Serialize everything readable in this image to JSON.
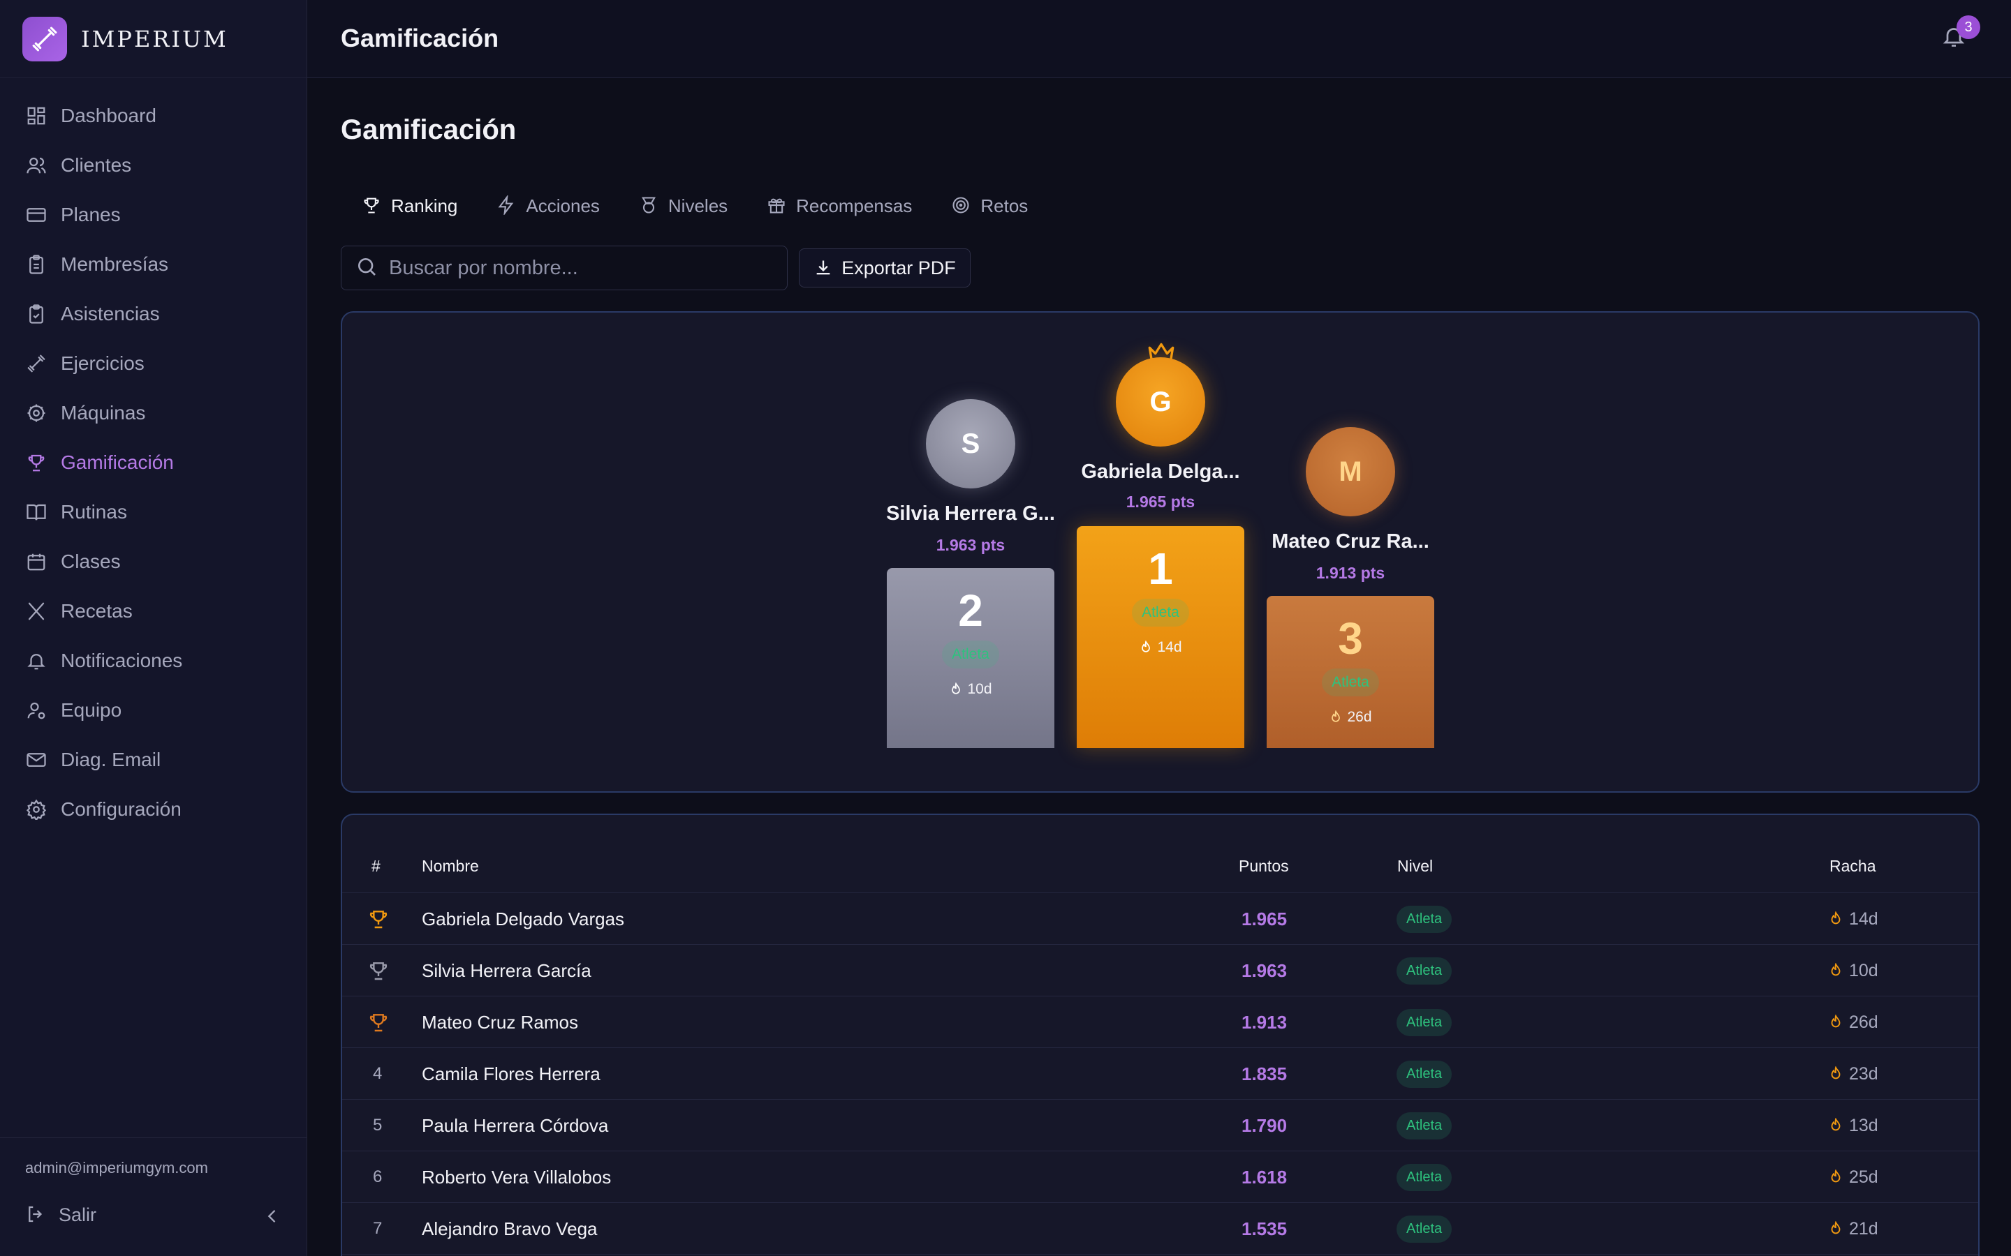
{
  "brand": {
    "name": "IMPERIUM"
  },
  "sidebar": {
    "items": [
      {
        "label": "Dashboard",
        "icon": "dashboard-icon"
      },
      {
        "label": "Clientes",
        "icon": "users-icon"
      },
      {
        "label": "Planes",
        "icon": "card-icon"
      },
      {
        "label": "Membresías",
        "icon": "clipboard-icon"
      },
      {
        "label": "Asistencias",
        "icon": "clipboard-check-icon"
      },
      {
        "label": "Ejercicios",
        "icon": "dumbbell-icon"
      },
      {
        "label": "Máquinas",
        "icon": "cog-icon"
      },
      {
        "label": "Gamificación",
        "icon": "trophy-icon",
        "active": true
      },
      {
        "label": "Rutinas",
        "icon": "book-icon"
      },
      {
        "label": "Clases",
        "icon": "calendar-icon"
      },
      {
        "label": "Recetas",
        "icon": "utensils-icon"
      },
      {
        "label": "Notificaciones",
        "icon": "bell-icon"
      },
      {
        "label": "Equipo",
        "icon": "user-gear-icon"
      },
      {
        "label": "Diag. Email",
        "icon": "mail-icon"
      },
      {
        "label": "Configuración",
        "icon": "settings-icon"
      }
    ],
    "admin_email": "admin@imperiumgym.com",
    "logout_label": "Salir"
  },
  "header": {
    "title": "Gamificación",
    "notification_count": "3"
  },
  "main": {
    "title": "Gamificación",
    "tabs": [
      {
        "label": "Ranking",
        "active": true
      },
      {
        "label": "Acciones"
      },
      {
        "label": "Niveles"
      },
      {
        "label": "Recompensas"
      },
      {
        "label": "Retos"
      }
    ],
    "search": {
      "placeholder": "Buscar por nombre..."
    },
    "export_label": "Exportar PDF"
  },
  "podium": [
    {
      "position": "2",
      "initial": "S",
      "name": "Silvia Herrera G...",
      "points": "1.963 pts",
      "level": "Atleta",
      "streak": "10d"
    },
    {
      "position": "1",
      "initial": "G",
      "name": "Gabriela Delga...",
      "points": "1.965 pts",
      "level": "Atleta",
      "streak": "14d"
    },
    {
      "position": "3",
      "initial": "M",
      "name": "Mateo Cruz Ra...",
      "points": "1.913 pts",
      "level": "Atleta",
      "streak": "26d"
    }
  ],
  "table": {
    "headers": {
      "rank": "#",
      "name": "Nombre",
      "points": "Puntos",
      "level": "Nivel",
      "streak": "Racha"
    },
    "rows": [
      {
        "rank": "",
        "medal": "gold",
        "name": "Gabriela Delgado Vargas",
        "points": "1.965",
        "level": "Atleta",
        "streak": "14d"
      },
      {
        "rank": "",
        "medal": "silver",
        "name": "Silvia Herrera García",
        "points": "1.963",
        "level": "Atleta",
        "streak": "10d"
      },
      {
        "rank": "",
        "medal": "bronze",
        "name": "Mateo Cruz Ramos",
        "points": "1.913",
        "level": "Atleta",
        "streak": "26d"
      },
      {
        "rank": "4",
        "name": "Camila Flores Herrera",
        "points": "1.835",
        "level": "Atleta",
        "streak": "23d"
      },
      {
        "rank": "5",
        "name": "Paula Herrera Córdova",
        "points": "1.790",
        "level": "Atleta",
        "streak": "13d"
      },
      {
        "rank": "6",
        "name": "Roberto Vera Villalobos",
        "points": "1.618",
        "level": "Atleta",
        "streak": "25d"
      },
      {
        "rank": "7",
        "name": "Alejandro Bravo Vega",
        "points": "1.535",
        "level": "Atleta",
        "streak": "21d"
      }
    ]
  },
  "colors": {
    "accent": "#b57ae6",
    "gold": "#f29a10",
    "silver": "#9a9bab",
    "bronze": "#c8783c",
    "level": "#2ec27e"
  }
}
